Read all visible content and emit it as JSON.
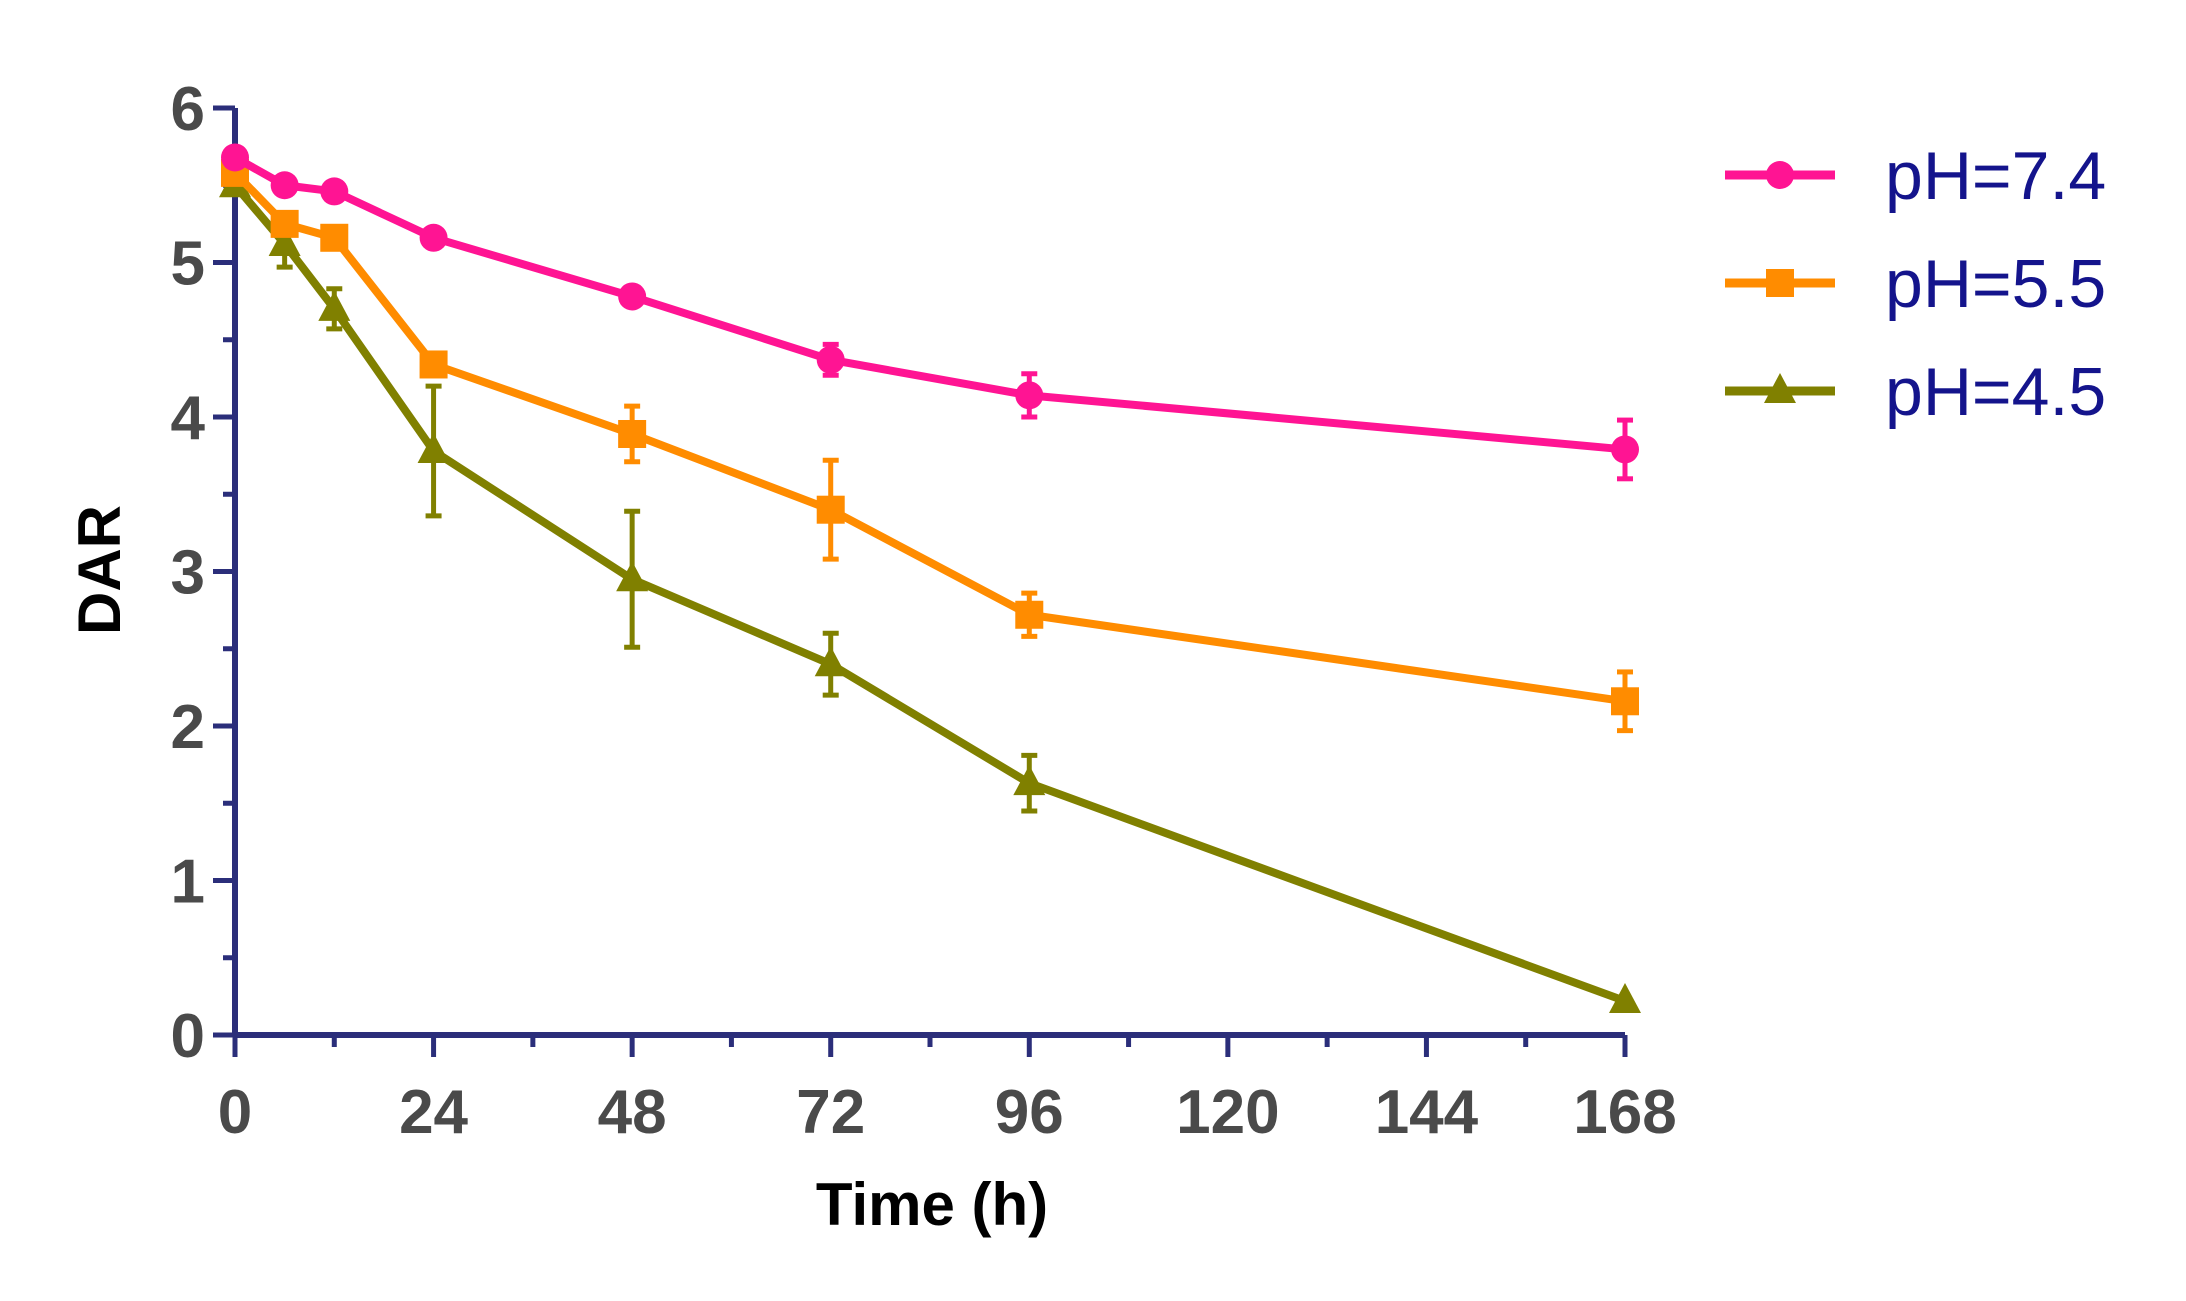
{
  "chart_data": {
    "type": "line",
    "title": "",
    "xlabel": "Time (h)",
    "ylabel": "DAR",
    "xlim": [
      0,
      168
    ],
    "ylim": [
      0,
      6
    ],
    "xticks": [
      0,
      24,
      48,
      72,
      96,
      120,
      144,
      168
    ],
    "xtick_labels": [
      "0",
      "24",
      "48",
      "72",
      "96",
      "120",
      "144",
      "168"
    ],
    "yticks": [
      0,
      1,
      2,
      3,
      4,
      5,
      6
    ],
    "ytick_labels": [
      "0",
      "1",
      "2",
      "3",
      "4",
      "5",
      "6"
    ],
    "legend_position": "top-right",
    "axis_color": "#2b2e7a",
    "series": [
      {
        "name": "pH=7.4",
        "color": "#ff1493",
        "marker": "circle",
        "x": [
          0,
          6,
          12,
          24,
          48,
          72,
          96,
          168
        ],
        "y": [
          5.68,
          5.5,
          5.46,
          5.16,
          4.78,
          4.37,
          4.14,
          3.79
        ],
        "err": [
          0.03,
          0.03,
          0.03,
          0.04,
          0.04,
          0.1,
          0.14,
          0.19
        ]
      },
      {
        "name": "pH=5.5",
        "color": "#ff8c00",
        "marker": "square",
        "x": [
          0,
          6,
          12,
          24,
          48,
          72,
          96,
          168
        ],
        "y": [
          5.58,
          5.25,
          5.16,
          4.34,
          3.89,
          3.4,
          2.72,
          2.16
        ],
        "err": [
          0.04,
          0.05,
          0.05,
          0.05,
          0.18,
          0.32,
          0.14,
          0.19
        ]
      },
      {
        "name": "pH=4.5",
        "color": "#808000",
        "marker": "triangle",
        "x": [
          0,
          6,
          12,
          24,
          48,
          72,
          96,
          168
        ],
        "y": [
          5.5,
          5.12,
          4.7,
          3.78,
          2.95,
          2.4,
          1.63,
          0.22
        ],
        "err": [
          0.03,
          0.15,
          0.13,
          0.42,
          0.44,
          0.2,
          0.18,
          0.03
        ]
      }
    ]
  }
}
